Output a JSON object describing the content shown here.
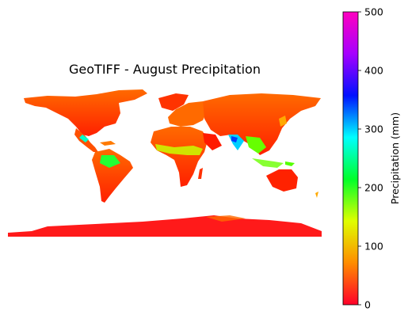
{
  "title": "GeoTIFF - August Precipitation",
  "colorbar": {
    "label": "Precipitation (mm)",
    "colormap": "gist_rainbow_r",
    "min": 0,
    "max": 500,
    "ticks": [
      "0",
      "100",
      "200",
      "300",
      "400",
      "500"
    ],
    "tick_values": [
      0,
      100,
      200,
      300,
      400,
      500
    ],
    "colors": [
      "#ff0029",
      "#ff8c00",
      "#dfff00",
      "#00ff2a",
      "#00ffff",
      "#0010ff",
      "#a600ff",
      "#ff00bf"
    ]
  },
  "map": {
    "projection": "plate-carree",
    "background": "#ffffff",
    "dominant_color": "#ff2a00"
  }
}
